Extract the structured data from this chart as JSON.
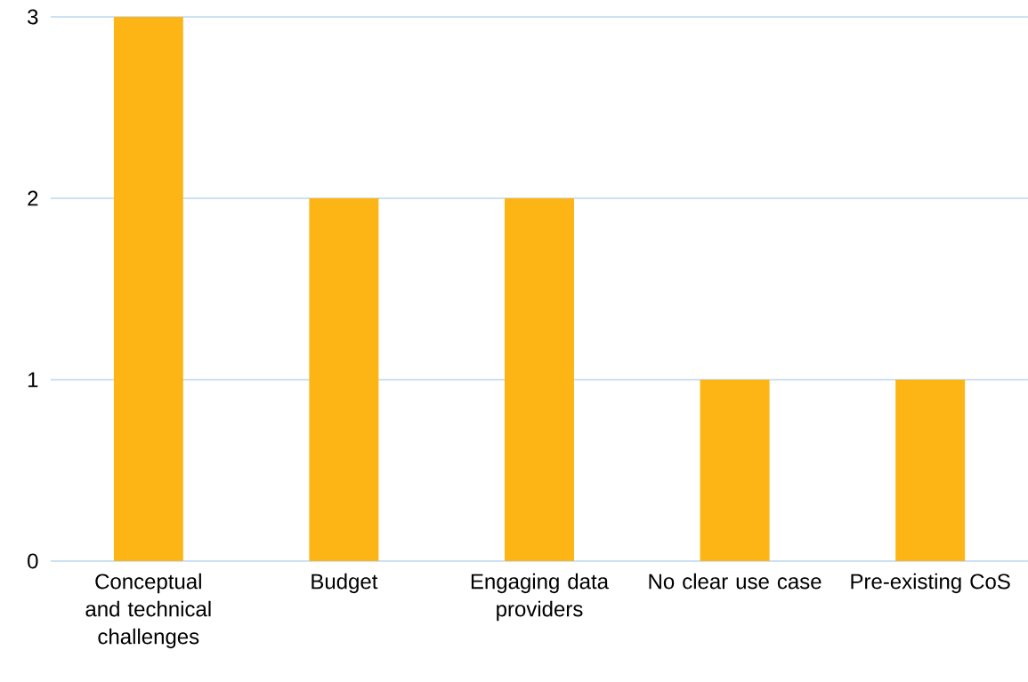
{
  "chart_data": {
    "type": "bar",
    "categories": [
      "Conceptual and technical challenges",
      "Budget",
      "Engaging data providers",
      "No clear use case",
      "Pre-existing CoS"
    ],
    "values": [
      3,
      2,
      2,
      1,
      1
    ],
    "color": "#fdb515",
    "ylim": [
      0,
      3
    ],
    "yticks": [
      0,
      1,
      2,
      3
    ],
    "grid": "y"
  }
}
